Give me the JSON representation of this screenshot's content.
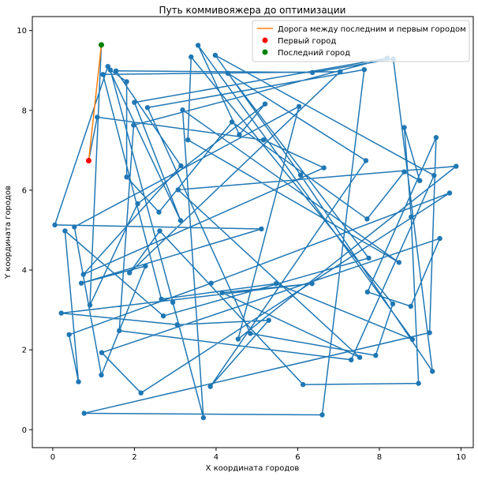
{
  "chart_data": {
    "type": "line",
    "title": "Путь коммивояжера до оптимизации",
    "xlabel": "X координата городов",
    "ylabel": "Y координата городов",
    "xlim": [
      -0.5,
      10.3
    ],
    "ylim": [
      -0.45,
      10.35
    ],
    "xticks": [
      0,
      2,
      4,
      6,
      8,
      10
    ],
    "yticks": [
      0,
      2,
      4,
      6,
      8,
      10
    ],
    "grid": false,
    "legend_position": "top-right",
    "colors": {
      "path": "#1f77b4",
      "closing_road": "#ff7f0e",
      "first_city": "#ff0000",
      "last_city": "#008000"
    },
    "legend": [
      {
        "key": "closing_road",
        "label": "Дорога между последним и первым городом",
        "marker": "line"
      },
      {
        "key": "first_city",
        "label": "Первый город",
        "marker": "dot"
      },
      {
        "key": "last_city",
        "label": "Последний город",
        "marker": "dot"
      }
    ],
    "series": [
      {
        "key": "path",
        "points": [
          [
            0.88,
            6.74
          ],
          [
            1.09,
            7.83
          ],
          [
            5.16,
            7.26
          ],
          [
            6.64,
            6.56
          ],
          [
            0.75,
            3.89
          ],
          [
            3.14,
            6.61
          ],
          [
            1.55,
            8.99
          ],
          [
            6.36,
            8.95
          ],
          [
            8.34,
            9.29
          ],
          [
            9.3,
            1.46
          ],
          [
            6.07,
            6.38
          ],
          [
            3.98,
            9.38
          ],
          [
            9.34,
            6.37
          ],
          [
            7.31,
            1.75
          ],
          [
            1.63,
            2.48
          ],
          [
            1.98,
            7.63
          ],
          [
            8.19,
            9.31
          ],
          [
            2.0,
            8.2
          ],
          [
            3.13,
            5.24
          ],
          [
            1.35,
            9.1
          ],
          [
            0.05,
            5.13
          ],
          [
            5.11,
            5.03
          ],
          [
            0.7,
            3.67
          ],
          [
            2.27,
            4.1
          ],
          [
            1.19,
            1.37
          ],
          [
            0.53,
            5.08
          ],
          [
            6.03,
            8.1
          ],
          [
            4.54,
            2.27
          ],
          [
            9.88,
            6.6
          ],
          [
            3.07,
            6.01
          ],
          [
            7.52,
            1.81
          ],
          [
            4.15,
            3.43
          ],
          [
            6.35,
            3.66
          ],
          [
            0.21,
            2.92
          ],
          [
            3.05,
            2.63
          ],
          [
            5.29,
            2.74
          ],
          [
            3.86,
            1.08
          ],
          [
            7.67,
            6.74
          ],
          [
            4.29,
            8.93
          ],
          [
            7.74,
            4.3
          ],
          [
            2.71,
            2.85
          ],
          [
            0.3,
            4.98
          ],
          [
            0.63,
            1.2
          ],
          [
            0.4,
            2.38
          ],
          [
            3.88,
            3.67
          ],
          [
            9.72,
            5.93
          ],
          [
            2.16,
            0.92
          ],
          [
            1.2,
            1.93
          ],
          [
            9.48,
            4.79
          ],
          [
            8.77,
            3.09
          ],
          [
            7.71,
            3.45
          ],
          [
            9.39,
            7.32
          ],
          [
            9.23,
            2.43
          ],
          [
            0.77,
            0.41
          ],
          [
            6.6,
            0.37
          ],
          [
            7.63,
            9.02
          ],
          [
            2.32,
            8.07
          ],
          [
            4.84,
            2.41
          ],
          [
            7.91,
            1.86
          ],
          [
            8.33,
            3.15
          ],
          [
            3.39,
            9.34
          ],
          [
            3.31,
            7.26
          ],
          [
            8.48,
            4.19
          ],
          [
            3.18,
            8.01
          ],
          [
            3.69,
            0.3
          ],
          [
            2.94,
            3.19
          ],
          [
            1.41,
            9.01
          ],
          [
            1.81,
            8.72
          ],
          [
            1.81,
            6.33
          ],
          [
            2.6,
            5.45
          ],
          [
            4.39,
            7.71
          ],
          [
            7.7,
            5.28
          ],
          [
            8.61,
            6.46
          ],
          [
            8.99,
            6.24
          ],
          [
            8.61,
            7.57
          ],
          [
            8.78,
            5.33
          ],
          [
            8.96,
            1.16
          ],
          [
            6.13,
            1.13
          ],
          [
            2.62,
            4.98
          ],
          [
            1.88,
            3.93
          ],
          [
            7.04,
            8.97
          ],
          [
            1.23,
            8.9
          ],
          [
            2.66,
            3.27
          ],
          [
            5.47,
            3.66
          ],
          [
            8.81,
            2.26
          ],
          [
            3.56,
            9.63
          ],
          [
            4.57,
            7.39
          ],
          [
            5.2,
            8.16
          ],
          [
            2.08,
            5.66
          ],
          [
            0.91,
            3.12
          ],
          [
            1.19,
            9.64
          ]
        ]
      }
    ],
    "closing_road": {
      "from": [
        1.19,
        9.64
      ],
      "to": [
        0.88,
        6.74
      ]
    },
    "first_city": [
      0.88,
      6.74
    ],
    "last_city": [
      1.19,
      9.64
    ]
  }
}
